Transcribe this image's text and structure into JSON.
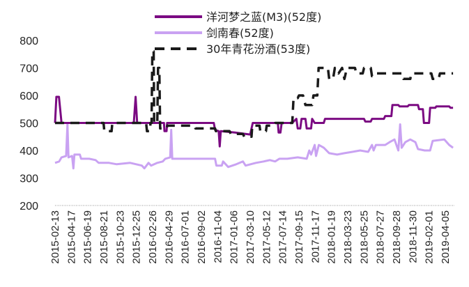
{
  "chart_data": {
    "type": "line",
    "ylim": [
      200,
      800
    ],
    "yticks": [
      200,
      300,
      400,
      500,
      600,
      700,
      800
    ],
    "grid": false,
    "legend_position": "top-center",
    "xlim": [
      "2015-02-13",
      "2019-05-10"
    ],
    "xtick_labels": [
      "2015-02-13",
      "2015-04-17",
      "2015-06-19",
      "2015-08-21",
      "2015-10-23",
      "2015-12-25",
      "2016-02-26",
      "2016-04-29",
      "2016-07-01",
      "2016-09-02",
      "2016-11-04",
      "2017-01-06",
      "2017-03-10",
      "2017-05-12",
      "2017-07-14",
      "2017-09-15",
      "2017-11-17",
      "2018-01-19",
      "2018-03-23",
      "2018-05-25",
      "2018-07-27",
      "2018-09-28",
      "2018-11-30",
      "2019-02-01",
      "2019-04-05"
    ],
    "series": [
      {
        "name": "洋河梦之蓝(M3)(52度)",
        "color": "#7B0A82",
        "dash": "solid",
        "points": [
          [
            "2015-02-13",
            500
          ],
          [
            "2015-02-18",
            595
          ],
          [
            "2015-02-28",
            595
          ],
          [
            "2015-03-10",
            500
          ],
          [
            "2015-12-15",
            500
          ],
          [
            "2015-12-22",
            595
          ],
          [
            "2015-12-28",
            500
          ],
          [
            "2016-04-10",
            500
          ],
          [
            "2016-04-12",
            470
          ],
          [
            "2016-04-20",
            470
          ],
          [
            "2016-04-22",
            500
          ],
          [
            "2016-10-20",
            500
          ],
          [
            "2016-10-25",
            475
          ],
          [
            "2016-11-08",
            470
          ],
          [
            "2016-11-12",
            415
          ],
          [
            "2016-11-16",
            470
          ],
          [
            "2017-01-10",
            465
          ],
          [
            "2017-03-10",
            458
          ],
          [
            "2017-03-20",
            500
          ],
          [
            "2017-06-25",
            500
          ],
          [
            "2017-06-28",
            465
          ],
          [
            "2017-07-05",
            465
          ],
          [
            "2017-07-10",
            500
          ],
          [
            "2017-08-20",
            500
          ],
          [
            "2017-09-05",
            515
          ],
          [
            "2017-09-10",
            480
          ],
          [
            "2017-09-20",
            480
          ],
          [
            "2017-09-25",
            515
          ],
          [
            "2017-10-10",
            515
          ],
          [
            "2017-10-15",
            480
          ],
          [
            "2017-11-01",
            480
          ],
          [
            "2017-11-05",
            515
          ],
          [
            "2017-11-15",
            500
          ],
          [
            "2017-12-20",
            500
          ],
          [
            "2017-12-25",
            515
          ],
          [
            "2018-05-25",
            515
          ],
          [
            "2018-05-30",
            505
          ],
          [
            "2018-06-20",
            505
          ],
          [
            "2018-06-25",
            515
          ],
          [
            "2018-08-10",
            515
          ],
          [
            "2018-08-15",
            525
          ],
          [
            "2018-09-08",
            525
          ],
          [
            "2018-09-12",
            565
          ],
          [
            "2018-10-05",
            565
          ],
          [
            "2018-10-10",
            560
          ],
          [
            "2018-11-10",
            560
          ],
          [
            "2018-11-15",
            565
          ],
          [
            "2018-12-20",
            565
          ],
          [
            "2018-12-24",
            550
          ],
          [
            "2019-01-08",
            550
          ],
          [
            "2019-01-12",
            500
          ],
          [
            "2019-02-01",
            500
          ],
          [
            "2019-02-05",
            555
          ],
          [
            "2019-02-25",
            555
          ],
          [
            "2019-03-01",
            560
          ],
          [
            "2019-04-20",
            560
          ],
          [
            "2019-04-25",
            555
          ],
          [
            "2019-05-05",
            555
          ]
        ]
      },
      {
        "name": "剑南春(52度)",
        "color": "#C9A2F2",
        "dash": "solid",
        "points": [
          [
            "2015-02-13",
            355
          ],
          [
            "2015-03-01",
            360
          ],
          [
            "2015-03-10",
            375
          ],
          [
            "2015-03-28",
            380
          ],
          [
            "2015-04-02",
            495
          ],
          [
            "2015-04-06",
            375
          ],
          [
            "2015-04-20",
            380
          ],
          [
            "2015-04-25",
            335
          ],
          [
            "2015-04-29",
            385
          ],
          [
            "2015-05-20",
            385
          ],
          [
            "2015-05-25",
            370
          ],
          [
            "2015-06-25",
            370
          ],
          [
            "2015-07-20",
            365
          ],
          [
            "2015-08-01",
            355
          ],
          [
            "2015-09-10",
            355
          ],
          [
            "2015-10-10",
            350
          ],
          [
            "2015-12-01",
            355
          ],
          [
            "2016-01-15",
            345
          ],
          [
            "2016-01-25",
            335
          ],
          [
            "2016-02-10",
            355
          ],
          [
            "2016-02-20",
            345
          ],
          [
            "2016-03-15",
            355
          ],
          [
            "2016-04-05",
            360
          ],
          [
            "2016-04-15",
            370
          ],
          [
            "2016-05-04",
            375
          ],
          [
            "2016-05-08",
            475
          ],
          [
            "2016-05-12",
            370
          ],
          [
            "2016-07-01",
            370
          ],
          [
            "2016-09-02",
            370
          ],
          [
            "2016-10-25",
            370
          ],
          [
            "2016-10-30",
            345
          ],
          [
            "2016-11-20",
            345
          ],
          [
            "2016-11-25",
            360
          ],
          [
            "2016-12-15",
            340
          ],
          [
            "2017-01-15",
            350
          ],
          [
            "2017-02-10",
            360
          ],
          [
            "2017-02-20",
            345
          ],
          [
            "2017-04-01",
            355
          ],
          [
            "2017-05-01",
            360
          ],
          [
            "2017-05-25",
            365
          ],
          [
            "2017-06-15",
            360
          ],
          [
            "2017-07-01",
            370
          ],
          [
            "2017-08-01",
            370
          ],
          [
            "2017-09-10",
            375
          ],
          [
            "2017-10-15",
            370
          ],
          [
            "2017-10-25",
            400
          ],
          [
            "2017-11-01",
            385
          ],
          [
            "2017-11-15",
            420
          ],
          [
            "2017-11-20",
            380
          ],
          [
            "2017-12-01",
            420
          ],
          [
            "2017-12-20",
            410
          ],
          [
            "2018-01-10",
            390
          ],
          [
            "2018-02-10",
            385
          ],
          [
            "2018-03-10",
            390
          ],
          [
            "2018-04-10",
            395
          ],
          [
            "2018-05-10",
            400
          ],
          [
            "2018-06-10",
            395
          ],
          [
            "2018-06-25",
            420
          ],
          [
            "2018-07-01",
            400
          ],
          [
            "2018-07-10",
            420
          ],
          [
            "2018-08-15",
            420
          ],
          [
            "2018-09-01",
            430
          ],
          [
            "2018-09-20",
            440
          ],
          [
            "2018-10-05",
            400
          ],
          [
            "2018-10-12",
            495
          ],
          [
            "2018-10-18",
            410
          ],
          [
            "2018-11-01",
            430
          ],
          [
            "2018-11-20",
            440
          ],
          [
            "2018-12-10",
            430
          ],
          [
            "2018-12-20",
            405
          ],
          [
            "2019-01-15",
            400
          ],
          [
            "2019-02-05",
            400
          ],
          [
            "2019-02-15",
            435
          ],
          [
            "2019-04-01",
            440
          ],
          [
            "2019-04-20",
            420
          ],
          [
            "2019-05-05",
            410
          ]
        ]
      },
      {
        "name": "30年青花汾酒(53度)",
        "color": "#1A1A1A",
        "dash": "dashed",
        "points": [
          [
            "2015-02-13",
            500
          ],
          [
            "2015-08-20",
            500
          ],
          [
            "2015-08-23",
            470
          ],
          [
            "2015-09-20",
            470
          ],
          [
            "2015-09-23",
            500
          ],
          [
            "2016-02-01",
            500
          ],
          [
            "2016-02-04",
            470
          ],
          [
            "2016-02-15",
            470
          ],
          [
            "2016-02-18",
            500
          ],
          [
            "2016-02-22",
            500
          ],
          [
            "2016-02-25",
            760
          ],
          [
            "2016-03-01",
            760
          ],
          [
            "2016-03-03",
            500
          ],
          [
            "2016-03-15",
            500
          ],
          [
            "2016-03-18",
            700
          ],
          [
            "2016-03-23",
            700
          ],
          [
            "2016-03-26",
            480
          ],
          [
            "2016-04-20",
            480
          ],
          [
            "2016-04-23",
            490
          ],
          [
            "2016-08-05",
            490
          ],
          [
            "2016-08-10",
            480
          ],
          [
            "2016-10-25",
            480
          ],
          [
            "2016-10-28",
            470
          ],
          [
            "2016-12-20",
            470
          ],
          [
            "2016-12-25",
            460
          ],
          [
            "2017-02-10",
            460
          ],
          [
            "2017-02-15",
            450
          ],
          [
            "2017-03-15",
            450
          ],
          [
            "2017-03-18",
            490
          ],
          [
            "2017-04-15",
            490
          ],
          [
            "2017-04-18",
            470
          ],
          [
            "2017-05-10",
            470
          ],
          [
            "2017-05-13",
            490
          ],
          [
            "2017-06-10",
            490
          ],
          [
            "2017-06-15",
            500
          ],
          [
            "2017-08-20",
            500
          ],
          [
            "2017-08-25",
            590
          ],
          [
            "2017-09-10",
            590
          ],
          [
            "2017-09-15",
            600
          ],
          [
            "2017-10-01",
            600
          ],
          [
            "2017-10-10",
            565
          ],
          [
            "2017-11-05",
            565
          ],
          [
            "2017-11-10",
            600
          ],
          [
            "2017-11-25",
            600
          ],
          [
            "2017-11-30",
            700
          ],
          [
            "2018-01-05",
            700
          ],
          [
            "2018-01-10",
            660
          ],
          [
            "2018-01-25",
            660
          ],
          [
            "2018-02-01",
            700
          ],
          [
            "2018-02-15",
            680
          ],
          [
            "2018-03-01",
            700
          ],
          [
            "2018-03-10",
            660
          ],
          [
            "2018-03-20",
            700
          ],
          [
            "2018-04-20",
            700
          ],
          [
            "2018-04-25",
            680
          ],
          [
            "2018-05-20",
            680
          ],
          [
            "2018-05-25",
            700
          ],
          [
            "2018-06-20",
            700
          ],
          [
            "2018-06-25",
            670
          ],
          [
            "2018-07-05",
            670
          ],
          [
            "2018-07-10",
            680
          ],
          [
            "2018-10-20",
            680
          ],
          [
            "2018-10-25",
            660
          ],
          [
            "2018-11-20",
            660
          ],
          [
            "2018-11-25",
            680
          ],
          [
            "2019-02-10",
            680
          ],
          [
            "2019-02-15",
            660
          ],
          [
            "2019-03-10",
            660
          ],
          [
            "2019-03-15",
            680
          ],
          [
            "2019-05-05",
            680
          ]
        ]
      }
    ]
  }
}
